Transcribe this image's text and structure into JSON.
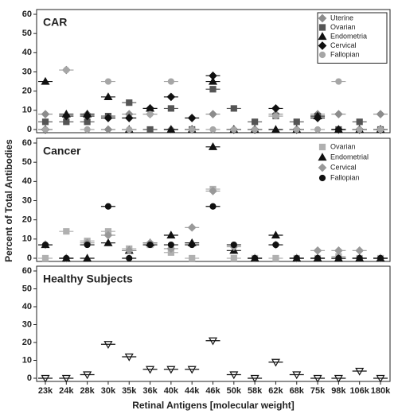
{
  "chart_data": [
    {
      "type": "scatter",
      "title": "CAR",
      "ylim": [
        0,
        60
      ],
      "yticks": [
        0,
        10,
        20,
        30,
        40,
        50,
        60
      ],
      "legend": "top-right",
      "legend_box": true,
      "series": [
        {
          "name": "Uterine",
          "color": "#8c8c8c",
          "marker": "diamond",
          "values": [
            8,
            31,
            8,
            0,
            8,
            8,
            0,
            0,
            8,
            0,
            0,
            8,
            0,
            8,
            8,
            0,
            8
          ]
        },
        {
          "name": "Ovarian",
          "color": "#555555",
          "marker": "square",
          "values": [
            4,
            4,
            4,
            7,
            14,
            0,
            11,
            0,
            21,
            11,
            4,
            7,
            4,
            7,
            0,
            4,
            0
          ]
        },
        {
          "name": "Endometria",
          "color": "#111111",
          "marker": "triangle",
          "values": [
            25,
            8,
            8,
            17,
            0,
            11,
            0,
            0,
            25,
            0,
            0,
            0,
            0,
            7,
            0,
            0,
            0
          ]
        },
        {
          "name": "Cervical",
          "color": "#111111",
          "marker": "diamond",
          "values": [
            0,
            7,
            7,
            6,
            6,
            11,
            17,
            6,
            28,
            0,
            0,
            11,
            0,
            6,
            0,
            0,
            0
          ]
        },
        {
          "name": "Fallopian",
          "color": "#a6a6a6",
          "marker": "circle",
          "values": [
            0,
            31,
            0,
            25,
            0,
            8,
            25,
            0,
            0,
            0,
            0,
            7,
            0,
            0,
            25,
            0,
            0
          ]
        }
      ]
    },
    {
      "type": "scatter",
      "title": "Cancer",
      "y_label": "Percent of Total Antibodies",
      "ylim": [
        0,
        60
      ],
      "yticks": [
        0,
        10,
        20,
        30,
        40,
        50,
        60
      ],
      "legend": "top-right",
      "legend_box": false,
      "series": [
        {
          "name": "Ovarian",
          "color": "#b0b0b0",
          "marker": "square",
          "values": [
            0,
            14,
            9,
            14,
            5,
            7,
            3,
            0,
            36,
            0,
            0,
            0,
            0,
            0,
            1,
            0,
            0
          ]
        },
        {
          "name": "Endometrial",
          "color": "#111111",
          "marker": "triangle",
          "values": [
            7,
            0,
            0,
            8,
            4,
            8,
            12,
            8,
            58,
            4,
            0,
            12,
            0,
            0,
            0,
            0,
            0
          ]
        },
        {
          "name": "Cervical",
          "color": "#999999",
          "marker": "diamond",
          "values": [
            7,
            0,
            8,
            12,
            4,
            8,
            5,
            16,
            35,
            6,
            0,
            7,
            0,
            4,
            4,
            4,
            0
          ]
        },
        {
          "name": "Fallopian",
          "color": "#111111",
          "marker": "circle",
          "values": [
            7,
            0,
            7,
            27,
            0,
            7,
            7,
            7,
            27,
            7,
            0,
            7,
            0,
            0,
            0,
            0,
            0
          ]
        }
      ]
    },
    {
      "type": "scatter",
      "title": "Healthy Subjects",
      "x_label": "Retinal Antigens [molecular weight]",
      "ylim": [
        0,
        60
      ],
      "yticks": [
        0,
        10,
        20,
        30,
        40,
        50,
        60
      ],
      "categories": [
        "23k",
        "24k",
        "28k",
        "30k",
        "35k",
        "36k",
        "40k",
        "44k",
        "46k",
        "50k",
        "58k",
        "62k",
        "68k",
        "75k",
        "98k",
        "106k",
        "180k"
      ],
      "series": [
        {
          "color": "#111111",
          "marker": "tri-down-open",
          "values": [
            0,
            0,
            2,
            19,
            12,
            5,
            5,
            5,
            21,
            2,
            0,
            9,
            2,
            0,
            0,
            4,
            0
          ]
        }
      ]
    }
  ]
}
